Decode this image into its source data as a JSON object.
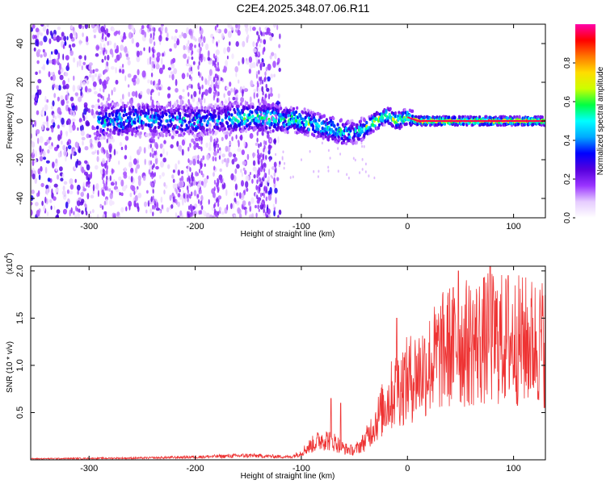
{
  "title": "C2E4.2025.348.07.06.R11",
  "chart_data": [
    {
      "type": "heatmap",
      "name": "spectrogram",
      "xlabel": "Height of straight line (km)",
      "ylabel": "Frequency (Hz)",
      "xlim": [
        -355,
        130
      ],
      "ylim": [
        -50,
        50
      ],
      "xticks": [
        -300,
        -200,
        -100,
        0,
        100
      ],
      "xtick_labels": [
        "-300",
        "-200",
        "-100",
        "0",
        "100"
      ],
      "yticks": [
        -40,
        -20,
        0,
        20,
        40
      ],
      "ytick_labels": [
        "-40",
        "-20",
        "0",
        "20",
        "40"
      ],
      "ridge": {
        "x": [
          -290,
          -250,
          -200,
          -150,
          -120,
          -100,
          -80,
          -60,
          -50,
          -40,
          -30,
          -20,
          -10,
          0,
          10,
          60,
          130
        ],
        "y": [
          0,
          1,
          0,
          2,
          1,
          0,
          -3,
          -6,
          -6,
          -4,
          0,
          3,
          0,
          2,
          0,
          0,
          0
        ]
      },
      "noise_edge_x": -130,
      "colorbar": {
        "label": "Normalized spectral amplitude",
        "range": [
          0,
          1
        ],
        "ticks": [
          0.0,
          0.2,
          0.4,
          0.6,
          0.8
        ],
        "tick_labels": [
          "0.0",
          "0.2",
          "0.4",
          "0.6",
          "0.8"
        ],
        "colors": [
          "#ffffff",
          "#e6ccff",
          "#9933ff",
          "#5500dd",
          "#0000ff",
          "#00aaff",
          "#00ffff",
          "#00ff44",
          "#ccff00",
          "#ffdd00",
          "#ff7700",
          "#ff0000",
          "#ff00aa"
        ]
      }
    },
    {
      "type": "line",
      "name": "snr",
      "xlabel": "Height of straight line (km)",
      "ylabel": "SNR (10 * v/v)",
      "multiplier_label": "(x10",
      "multiplier_exp": "4",
      "xlim": [
        -355,
        130
      ],
      "ylim": [
        0,
        20500
      ],
      "xticks": [
        -300,
        -200,
        -100,
        0,
        100
      ],
      "xtick_labels": [
        "-300",
        "-200",
        "-100",
        "0",
        "100"
      ],
      "yticks": [
        5000,
        10000,
        15000,
        20000
      ],
      "ytick_labels": [
        "0.5",
        "1.0",
        "1.5",
        "2.0"
      ],
      "color": "#ee3333",
      "envelope": {
        "x": [
          -355,
          -250,
          -200,
          -150,
          -110,
          -100,
          -90,
          -80,
          -70,
          -60,
          -50,
          -40,
          -30,
          -20,
          -10,
          0,
          10,
          20,
          30,
          40,
          60,
          80,
          100,
          130
        ],
        "y": [
          150,
          250,
          400,
          600,
          400,
          1000,
          2000,
          2800,
          2500,
          1500,
          1200,
          2500,
          5000,
          7500,
          9500,
          10500,
          11500,
          12500,
          14000,
          15000,
          15500,
          16000,
          15800,
          15500
        ]
      },
      "peaks": [
        {
          "x": -72,
          "y": 6500
        },
        {
          "x": -63,
          "y": 6000
        },
        {
          "x": -10,
          "y": 15000
        },
        {
          "x": 48,
          "y": 20000
        },
        {
          "x": 78,
          "y": 20500
        },
        {
          "x": 95,
          "y": 19500
        }
      ]
    }
  ]
}
